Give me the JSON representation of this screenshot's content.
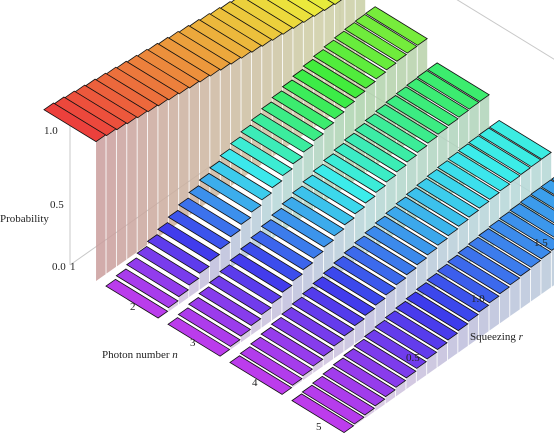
{
  "chart_data": {
    "type": "bar3d",
    "x_axis": {
      "label_prefix": "Photon number ",
      "label_var": "n",
      "ticks": [
        "1",
        "2",
        "3",
        "4",
        "5"
      ]
    },
    "y_axis": {
      "label_prefix": "Squeezing ",
      "label_var": "r",
      "ticks": [
        "0.5",
        "1.0",
        "1.5"
      ],
      "range": [
        0,
        1.6
      ]
    },
    "z_axis": {
      "label": "Probability",
      "ticks": [
        "0.0",
        "0.5",
        "1.0"
      ],
      "range": [
        0,
        1.0
      ]
    },
    "series_by_photon_number": [
      {
        "n": 1,
        "r_start": 0.0,
        "r_end": 1.6,
        "p_start": 1.0,
        "p_end": 0.75
      },
      {
        "n": 2,
        "r_start": 0.0,
        "r_end": 1.6,
        "p_start": 0.0,
        "p_end": 0.65
      },
      {
        "n": 3,
        "r_start": 0.0,
        "r_end": 1.6,
        "p_start": 0.0,
        "p_end": 0.52
      },
      {
        "n": 4,
        "r_start": 0.0,
        "r_end": 1.6,
        "p_start": 0.0,
        "p_end": 0.38
      },
      {
        "n": 5,
        "r_start": 0.0,
        "r_end": 1.6,
        "p_start": 0.0,
        "p_end": 0.28
      }
    ],
    "color_scale": "rainbow (violet low → red high)",
    "grid": false
  }
}
